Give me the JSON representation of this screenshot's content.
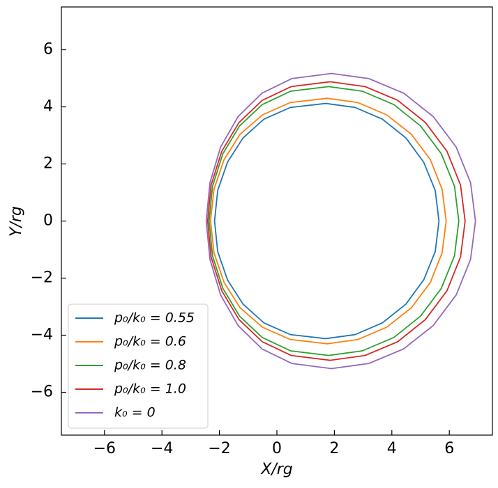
{
  "chart_data": {
    "type": "line",
    "x_label": "X/rg",
    "y_label": "Y/rg",
    "xlim": [
      -7.5,
      7.5
    ],
    "ylim": [
      -7.5,
      7.5
    ],
    "xticks": [
      {
        "value": -6,
        "label": "−6"
      },
      {
        "value": -4,
        "label": "−4"
      },
      {
        "value": -2,
        "label": "−2"
      },
      0,
      2,
      4,
      6
    ],
    "yticks": [
      {
        "value": -6,
        "label": "−6"
      },
      {
        "value": -4,
        "label": "−4"
      },
      {
        "value": -2,
        "label": "−2"
      },
      0,
      2,
      4,
      6
    ],
    "legend": "lower left",
    "series": [
      {
        "name": "p₀/k₀ = 0.55",
        "color": "#1f77b4",
        "x": [
          5.64,
          5.51,
          5.11,
          4.49,
          3.67,
          2.72,
          1.7,
          0.47,
          -0.45,
          -1.18,
          -1.72,
          -2.06,
          -2.17,
          -2.06,
          -1.72,
          -1.18,
          -0.45,
          0.47,
          1.7,
          2.72,
          3.67,
          4.49,
          5.11,
          5.51,
          5.64
        ],
        "values": [
          0,
          1.07,
          2.06,
          2.91,
          3.57,
          3.98,
          4.12,
          3.98,
          3.57,
          2.91,
          2.06,
          1.07,
          0,
          -1.07,
          -2.06,
          -2.91,
          -3.57,
          -3.98,
          -4.12,
          -3.98,
          -3.57,
          -2.91,
          -2.06,
          -1.07,
          0
        ]
      },
      {
        "name": "p₀/k₀ = 0.6",
        "color": "#ff7f0e",
        "x": [
          5.89,
          5.75,
          5.34,
          4.68,
          3.82,
          2.82,
          1.75,
          0.46,
          -0.5,
          -1.28,
          -1.84,
          -2.19,
          -2.31,
          -2.19,
          -1.84,
          -1.28,
          -0.5,
          0.46,
          1.75,
          2.82,
          3.82,
          4.68,
          5.34,
          5.75,
          5.89
        ],
        "values": [
          0,
          1.11,
          2.15,
          3.04,
          3.72,
          4.15,
          4.3,
          4.15,
          3.72,
          3.04,
          2.15,
          1.11,
          0,
          -1.11,
          -2.15,
          -3.04,
          -3.72,
          -4.15,
          -4.3,
          -4.15,
          -3.72,
          -3.04,
          -2.15,
          -1.11,
          0
        ]
      },
      {
        "name": "p₀/k₀ = 0.8",
        "color": "#2ca02c",
        "x": [
          6.33,
          6.18,
          5.72,
          5.0,
          4.07,
          2.97,
          1.8,
          0.48,
          -0.51,
          -1.3,
          -1.88,
          -2.24,
          -2.36,
          -2.24,
          -1.88,
          -1.3,
          -0.51,
          0.48,
          1.8,
          2.97,
          4.07,
          5.0,
          5.72,
          6.18,
          6.33
        ],
        "values": [
          0,
          1.22,
          2.36,
          3.33,
          4.08,
          4.55,
          4.71,
          4.55,
          4.08,
          3.33,
          2.36,
          1.22,
          0,
          -1.22,
          -2.36,
          -3.33,
          -4.08,
          -4.55,
          -4.71,
          -4.55,
          -4.08,
          -3.33,
          -2.36,
          -1.22,
          0
        ]
      },
      {
        "name": "p₀/k₀ = 1.0",
        "color": "#d62728",
        "x": [
          6.55,
          6.39,
          5.92,
          5.17,
          4.2,
          3.07,
          1.85,
          0.5,
          -0.51,
          -1.32,
          -1.92,
          -2.29,
          -2.41,
          -2.29,
          -1.92,
          -1.32,
          -0.51,
          0.5,
          1.85,
          3.07,
          4.2,
          5.17,
          5.92,
          6.39,
          6.55
        ],
        "values": [
          0,
          1.26,
          2.44,
          3.45,
          4.23,
          4.71,
          4.88,
          4.71,
          4.23,
          3.45,
          2.44,
          1.26,
          0,
          -1.26,
          -2.44,
          -3.45,
          -4.23,
          -4.71,
          -4.88,
          -4.71,
          -4.23,
          -3.45,
          -2.44,
          -1.26,
          0
        ]
      },
      {
        "name": "k₀ = 0",
        "color": "#9467bd",
        "x": [
          6.91,
          6.74,
          6.24,
          5.44,
          4.41,
          3.2,
          1.9,
          0.52,
          -0.52,
          -1.35,
          -1.96,
          -2.33,
          -2.46,
          -2.33,
          -1.96,
          -1.35,
          -0.52,
          0.52,
          1.9,
          3.2,
          4.41,
          5.44,
          6.24,
          6.74,
          6.91
        ],
        "values": [
          0,
          1.34,
          2.59,
          3.66,
          4.48,
          4.99,
          5.17,
          4.99,
          4.48,
          3.66,
          2.59,
          1.34,
          0,
          -1.34,
          -2.59,
          -3.66,
          -4.48,
          -4.99,
          -5.17,
          -4.99,
          -4.48,
          -3.66,
          -2.59,
          -1.34,
          0
        ]
      }
    ]
  }
}
